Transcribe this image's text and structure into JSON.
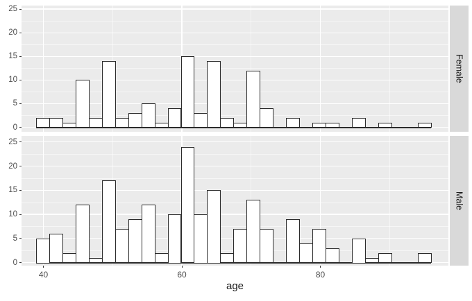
{
  "chart_data": {
    "type": "histogram",
    "title": "",
    "xlabel": "age",
    "ylabel": "",
    "facet_labels": [
      "Female",
      "Male"
    ],
    "x_tick_labels": [
      "40",
      "60",
      "80"
    ],
    "x_tick_values": [
      40,
      60,
      80
    ],
    "x_minor_values": [
      50,
      70,
      90
    ],
    "y_tick_labels": [
      "0",
      "5",
      "10",
      "15",
      "20",
      "25"
    ],
    "y_tick_values": [
      0,
      5,
      10,
      15,
      20,
      25
    ],
    "ylim": [
      0,
      25
    ],
    "xlim": [
      37,
      98.5
    ],
    "bins": 30,
    "binwidth": 1.9,
    "bin_centers": [
      39.9,
      41.8,
      43.7,
      45.6,
      47.5,
      49.4,
      51.3,
      53.2,
      55.1,
      57.0,
      58.9,
      60.8,
      62.7,
      64.6,
      66.5,
      68.4,
      70.3,
      72.2,
      74.1,
      76.0,
      77.9,
      79.8,
      81.7,
      83.6,
      85.5,
      87.4,
      89.3,
      91.2,
      93.1,
      95.0
    ],
    "series": [
      {
        "name": "Female",
        "values": [
          2,
          2,
          1,
          10,
          2,
          14,
          2,
          3,
          5,
          1,
          4,
          15,
          3,
          14,
          2,
          1,
          12,
          4,
          0,
          2,
          0,
          1,
          1,
          0,
          2,
          0,
          1,
          0,
          0,
          1
        ]
      },
      {
        "name": "Male",
        "values": [
          5,
          6,
          2,
          12,
          1,
          17,
          7,
          9,
          12,
          2,
          10,
          24,
          10,
          15,
          2,
          7,
          13,
          7,
          0,
          9,
          4,
          7,
          3,
          0,
          5,
          1,
          2,
          0,
          0,
          2
        ]
      }
    ],
    "legend": "none",
    "grid": true
  },
  "colors": {
    "background": "#FFFFFF",
    "panel_bg": "#EBEBEB",
    "strip_bg": "#D9D9D9",
    "grid_major": "#FFFFFF",
    "grid_minor": "rgba(255,255,255,0.55)",
    "bar_fill": "#FFFFFF",
    "bar_border": "#2B2B2B",
    "axis_text": "#4D4D4D",
    "strip_text": "#1A1A1A",
    "title_text": "#1A1A1A",
    "tick_mark": "#333333"
  }
}
